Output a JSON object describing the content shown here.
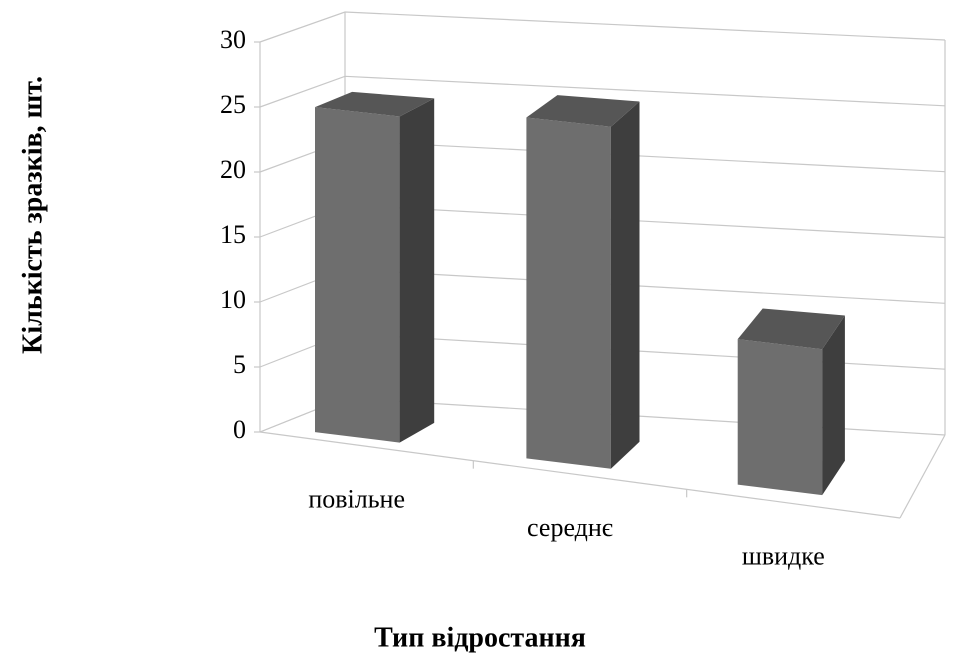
{
  "chart_data": {
    "type": "bar3d",
    "x_label": "Тип відростання",
    "y_label": "Кількість зразків, шт.",
    "categories": [
      "повільне",
      "середнє",
      "швидке"
    ],
    "values": [
      25,
      26,
      11
    ],
    "color": "#6e6e6e",
    "ylim": [
      0,
      30
    ],
    "yticks": [
      0,
      5,
      10,
      15,
      20,
      25,
      30
    ],
    "grid": true
  }
}
